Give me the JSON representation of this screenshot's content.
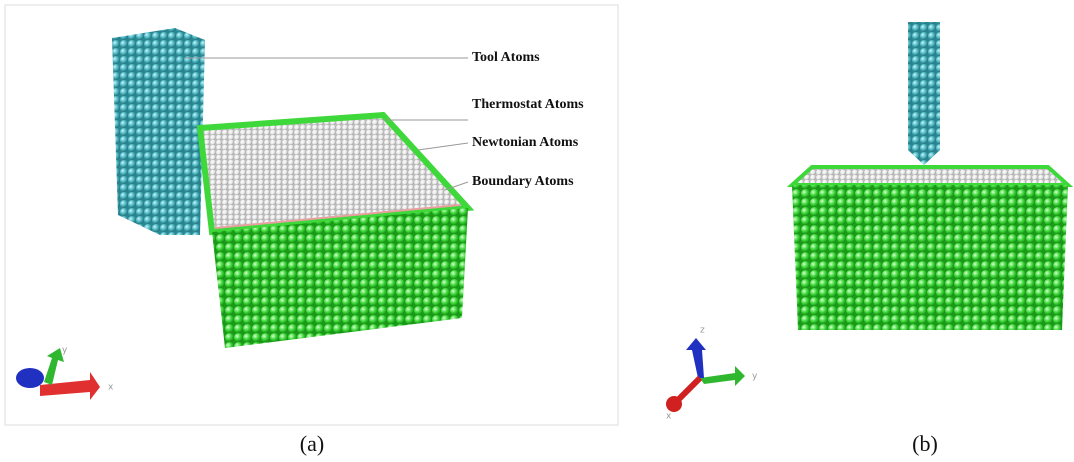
{
  "panels": [
    {
      "caption": "(a)",
      "labels": [
        "Tool Atoms",
        "Thermostat Atoms",
        "Newtonian Atoms",
        "Boundary Atoms"
      ],
      "axes": [
        "y",
        "x"
      ]
    },
    {
      "caption": "(b)",
      "axes": [
        "z",
        "y",
        "x"
      ]
    }
  ]
}
